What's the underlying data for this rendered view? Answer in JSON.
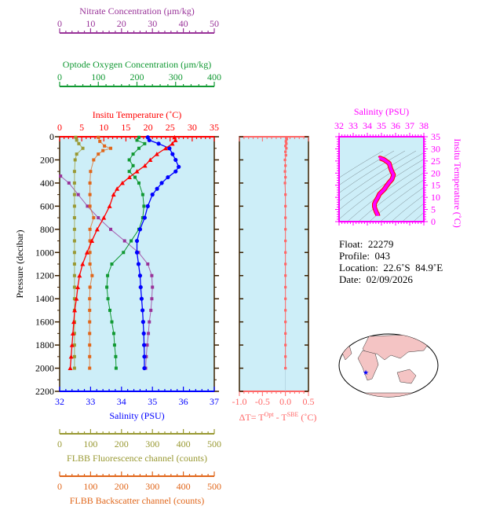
{
  "chart_data": [
    {
      "type": "line",
      "ylabel": "Pressure (decibar)",
      "ylim": [
        0,
        2200
      ],
      "yticks": [
        "0",
        "200",
        "400",
        "600",
        "800",
        "1000",
        "1200",
        "1400",
        "1600",
        "1800",
        "2000",
        "2200"
      ],
      "axes": [
        {
          "id": "nitrate",
          "label": "Nitrate Concentration (μm/kg)",
          "range": [
            0,
            50
          ],
          "ticks": [
            "0",
            "10",
            "20",
            "30",
            "40",
            "50"
          ],
          "color": "#993399",
          "position": "top"
        },
        {
          "id": "oxygen",
          "label": "Optode Oxygen Concentration (μm/kg)",
          "range": [
            0,
            400
          ],
          "ticks": [
            "0",
            "100",
            "200",
            "300",
            "400"
          ],
          "color": "#119933",
          "position": "top"
        },
        {
          "id": "temperature",
          "label": "Insitu Temperature (˚C)",
          "range": [
            0,
            35
          ],
          "ticks": [
            "0",
            "5",
            "10",
            "15",
            "20",
            "25",
            "30",
            "35"
          ],
          "color": "#ff0000",
          "position": "top"
        },
        {
          "id": "salinity",
          "label": "Salinity (PSU)",
          "range": [
            32,
            37
          ],
          "ticks": [
            "32",
            "33",
            "34",
            "35",
            "36",
            "37"
          ],
          "color": "#0000ff",
          "position": "bottom"
        },
        {
          "id": "fluorescence",
          "label": "FLBB Fluorescence channel (counts)",
          "range": [
            0,
            500
          ],
          "ticks": [
            "0",
            "100",
            "200",
            "300",
            "400",
            "500"
          ],
          "color": "#999933",
          "position": "bottom"
        },
        {
          "id": "backscatter",
          "label": "FLBB Backscatter channel (counts)",
          "range": [
            0,
            500
          ],
          "ticks": [
            "0",
            "100",
            "200",
            "300",
            "400",
            "500"
          ],
          "color": "#e0661a",
          "position": "bottom"
        }
      ],
      "series": [
        {
          "axis": "temperature",
          "marker": "triangle",
          "points": [
            [
              5,
              26
            ],
            [
              30,
              26.2
            ],
            [
              60,
              25.5
            ],
            [
              100,
              24
            ],
            [
              150,
              22
            ],
            [
              200,
              20.5
            ],
            [
              250,
              19.3
            ],
            [
              300,
              17.5
            ],
            [
              350,
              15.8
            ],
            [
              400,
              14.2
            ],
            [
              450,
              13
            ],
            [
              500,
              12.2
            ],
            [
              600,
              11.3
            ],
            [
              700,
              10
            ],
            [
              800,
              8.5
            ],
            [
              900,
              7.3
            ],
            [
              1000,
              6.2
            ],
            [
              1100,
              5.2
            ],
            [
              1200,
              4.5
            ],
            [
              1300,
              4.1
            ],
            [
              1400,
              3.8
            ],
            [
              1500,
              3.4
            ],
            [
              1600,
              3.2
            ],
            [
              1700,
              3.0
            ],
            [
              1800,
              2.8
            ],
            [
              1900,
              2.6
            ],
            [
              2000,
              2.4
            ]
          ]
        },
        {
          "axis": "salinity",
          "marker": "circle",
          "points": [
            [
              5,
              34.85
            ],
            [
              30,
              34.9
            ],
            [
              60,
              35.2
            ],
            [
              100,
              35.55
            ],
            [
              150,
              35.65
            ],
            [
              200,
              35.75
            ],
            [
              260,
              35.85
            ],
            [
              300,
              35.75
            ],
            [
              350,
              35.5
            ],
            [
              400,
              35.3
            ],
            [
              450,
              35.15
            ],
            [
              500,
              35.0
            ],
            [
              600,
              34.85
            ],
            [
              700,
              34.75
            ],
            [
              800,
              34.6
            ],
            [
              900,
              34.5
            ],
            [
              1000,
              34.5
            ],
            [
              1100,
              34.55
            ],
            [
              1200,
              34.6
            ],
            [
              1300,
              34.62
            ],
            [
              1400,
              34.65
            ],
            [
              1500,
              34.68
            ],
            [
              1600,
              34.7
            ],
            [
              1700,
              34.72
            ],
            [
              1800,
              34.73
            ],
            [
              1900,
              34.74
            ],
            [
              2000,
              34.74
            ]
          ]
        },
        {
          "axis": "oxygen",
          "marker": "square",
          "points": [
            [
              5,
              205
            ],
            [
              30,
              200
            ],
            [
              60,
              220
            ],
            [
              100,
              205
            ],
            [
              150,
              190
            ],
            [
              200,
              180
            ],
            [
              250,
              190
            ],
            [
              300,
              180
            ],
            [
              350,
              195
            ],
            [
              400,
              205
            ],
            [
              500,
              215
            ],
            [
              600,
              218
            ],
            [
              700,
              215
            ],
            [
              800,
              205
            ],
            [
              900,
              185
            ],
            [
              1000,
              165
            ],
            [
              1100,
              135
            ],
            [
              1200,
              124
            ],
            [
              1300,
              122
            ],
            [
              1400,
              125
            ],
            [
              1500,
              130
            ],
            [
              1600,
              135
            ],
            [
              1700,
              140
            ],
            [
              1800,
              142
            ],
            [
              1900,
              145
            ],
            [
              2000,
              146
            ]
          ]
        },
        {
          "axis": "nitrate",
          "marker": "square",
          "points": [
            [
              340,
              0.3
            ],
            [
              400,
              3
            ],
            [
              500,
              6
            ],
            [
              600,
              9
            ],
            [
              700,
              12.5
            ],
            [
              800,
              16.5
            ],
            [
              900,
              21
            ],
            [
              1000,
              25.5
            ],
            [
              1100,
              28.5
            ],
            [
              1200,
              29.8
            ],
            [
              1300,
              30
            ],
            [
              1400,
              29.8
            ],
            [
              1500,
              29.5
            ],
            [
              1600,
              29
            ],
            [
              1700,
              28.7
            ],
            [
              1800,
              28.3
            ],
            [
              1900,
              28
            ],
            [
              2000,
              27.8
            ]
          ]
        },
        {
          "axis": "fluorescence",
          "marker": "square",
          "points": [
            [
              5,
              52
            ],
            [
              30,
              55
            ],
            [
              60,
              62
            ],
            [
              100,
              75
            ],
            [
              150,
              55
            ],
            [
              200,
              50
            ],
            [
              300,
              48
            ],
            [
              400,
              48
            ],
            [
              500,
              48
            ],
            [
              600,
              48
            ],
            [
              700,
              48
            ],
            [
              800,
              48
            ],
            [
              900,
              48
            ],
            [
              1000,
              48
            ],
            [
              1100,
              48
            ],
            [
              1200,
              48
            ],
            [
              1300,
              48
            ],
            [
              1400,
              48
            ],
            [
              1500,
              48
            ],
            [
              1600,
              48
            ],
            [
              1700,
              48
            ],
            [
              1800,
              48
            ],
            [
              1900,
              48
            ],
            [
              2000,
              48
            ]
          ]
        },
        {
          "axis": "backscatter",
          "marker": "square",
          "points": [
            [
              5,
              125
            ],
            [
              40,
              130
            ],
            [
              80,
              145
            ],
            [
              100,
              165
            ],
            [
              120,
              140
            ],
            [
              150,
              125
            ],
            [
              200,
              110
            ],
            [
              300,
              100
            ],
            [
              400,
              98
            ],
            [
              500,
              98
            ],
            [
              600,
              98
            ],
            [
              700,
              110
            ],
            [
              800,
              98
            ],
            [
              900,
              98
            ],
            [
              1000,
              98
            ],
            [
              1100,
              98
            ],
            [
              1200,
              105
            ],
            [
              1300,
              98
            ],
            [
              1400,
              97
            ],
            [
              1500,
              97
            ],
            [
              1600,
              97
            ],
            [
              1700,
              97
            ],
            [
              1800,
              97
            ],
            [
              1900,
              97
            ],
            [
              2000,
              97
            ]
          ]
        }
      ]
    },
    {
      "type": "line",
      "xlabel_main": "ΔT= T",
      "xlabel_sup1": "Opt",
      "xlabel_mid": " - T",
      "xlabel_sup2": "SBE",
      "xlabel_end": " (˚C)",
      "xlim": [
        -1.0,
        0.5
      ],
      "xticks": [
        "-1.0",
        "-0.5",
        "0.0",
        "0.5"
      ],
      "ylim": [
        0,
        2200
      ],
      "color": "#ff6666",
      "points": [
        [
          5,
          0.02
        ],
        [
          20,
          0.03
        ],
        [
          40,
          0.01
        ],
        [
          60,
          0.02
        ],
        [
          80,
          0.0
        ],
        [
          100,
          0.02
        ],
        [
          130,
          0.0
        ],
        [
          160,
          0.01
        ],
        [
          200,
          -0.01
        ],
        [
          250,
          0.0
        ],
        [
          300,
          -0.01
        ],
        [
          350,
          0.0
        ],
        [
          400,
          -0.01
        ],
        [
          500,
          0.0
        ],
        [
          600,
          0.0
        ],
        [
          700,
          0.0
        ],
        [
          800,
          0.0
        ],
        [
          900,
          0.0
        ],
        [
          1000,
          0.0
        ],
        [
          1100,
          0.0
        ],
        [
          1200,
          0.0
        ],
        [
          1300,
          0.0
        ],
        [
          1400,
          0.0
        ],
        [
          1500,
          0.0
        ],
        [
          1600,
          0.0
        ],
        [
          1700,
          0.0
        ],
        [
          1800,
          0.0
        ],
        [
          1900,
          0.0
        ],
        [
          2000,
          0.0
        ]
      ]
    },
    {
      "type": "scatter",
      "xlabel": "Salinity (PSU)",
      "ylabel": "Insitu Temperature (˚C)",
      "xlim": [
        32,
        38
      ],
      "ylim": [
        0,
        35
      ],
      "xticks": [
        "32",
        "33",
        "34",
        "35",
        "36",
        "37",
        "38"
      ],
      "yticks": [
        "0",
        "5",
        "10",
        "15",
        "20",
        "25",
        "30",
        "35"
      ],
      "color": "#ff00ff",
      "density_contours": true
    }
  ],
  "info": {
    "float": "Float:  22279",
    "profile": "Profile:  043",
    "location": "Location:  22.6˚S  84.9˚E",
    "date": "Date:  02/09/2026"
  },
  "map": {
    "marker": "star",
    "marker_color": "#0000ff",
    "lat": -22.6,
    "lon": 84.9
  }
}
